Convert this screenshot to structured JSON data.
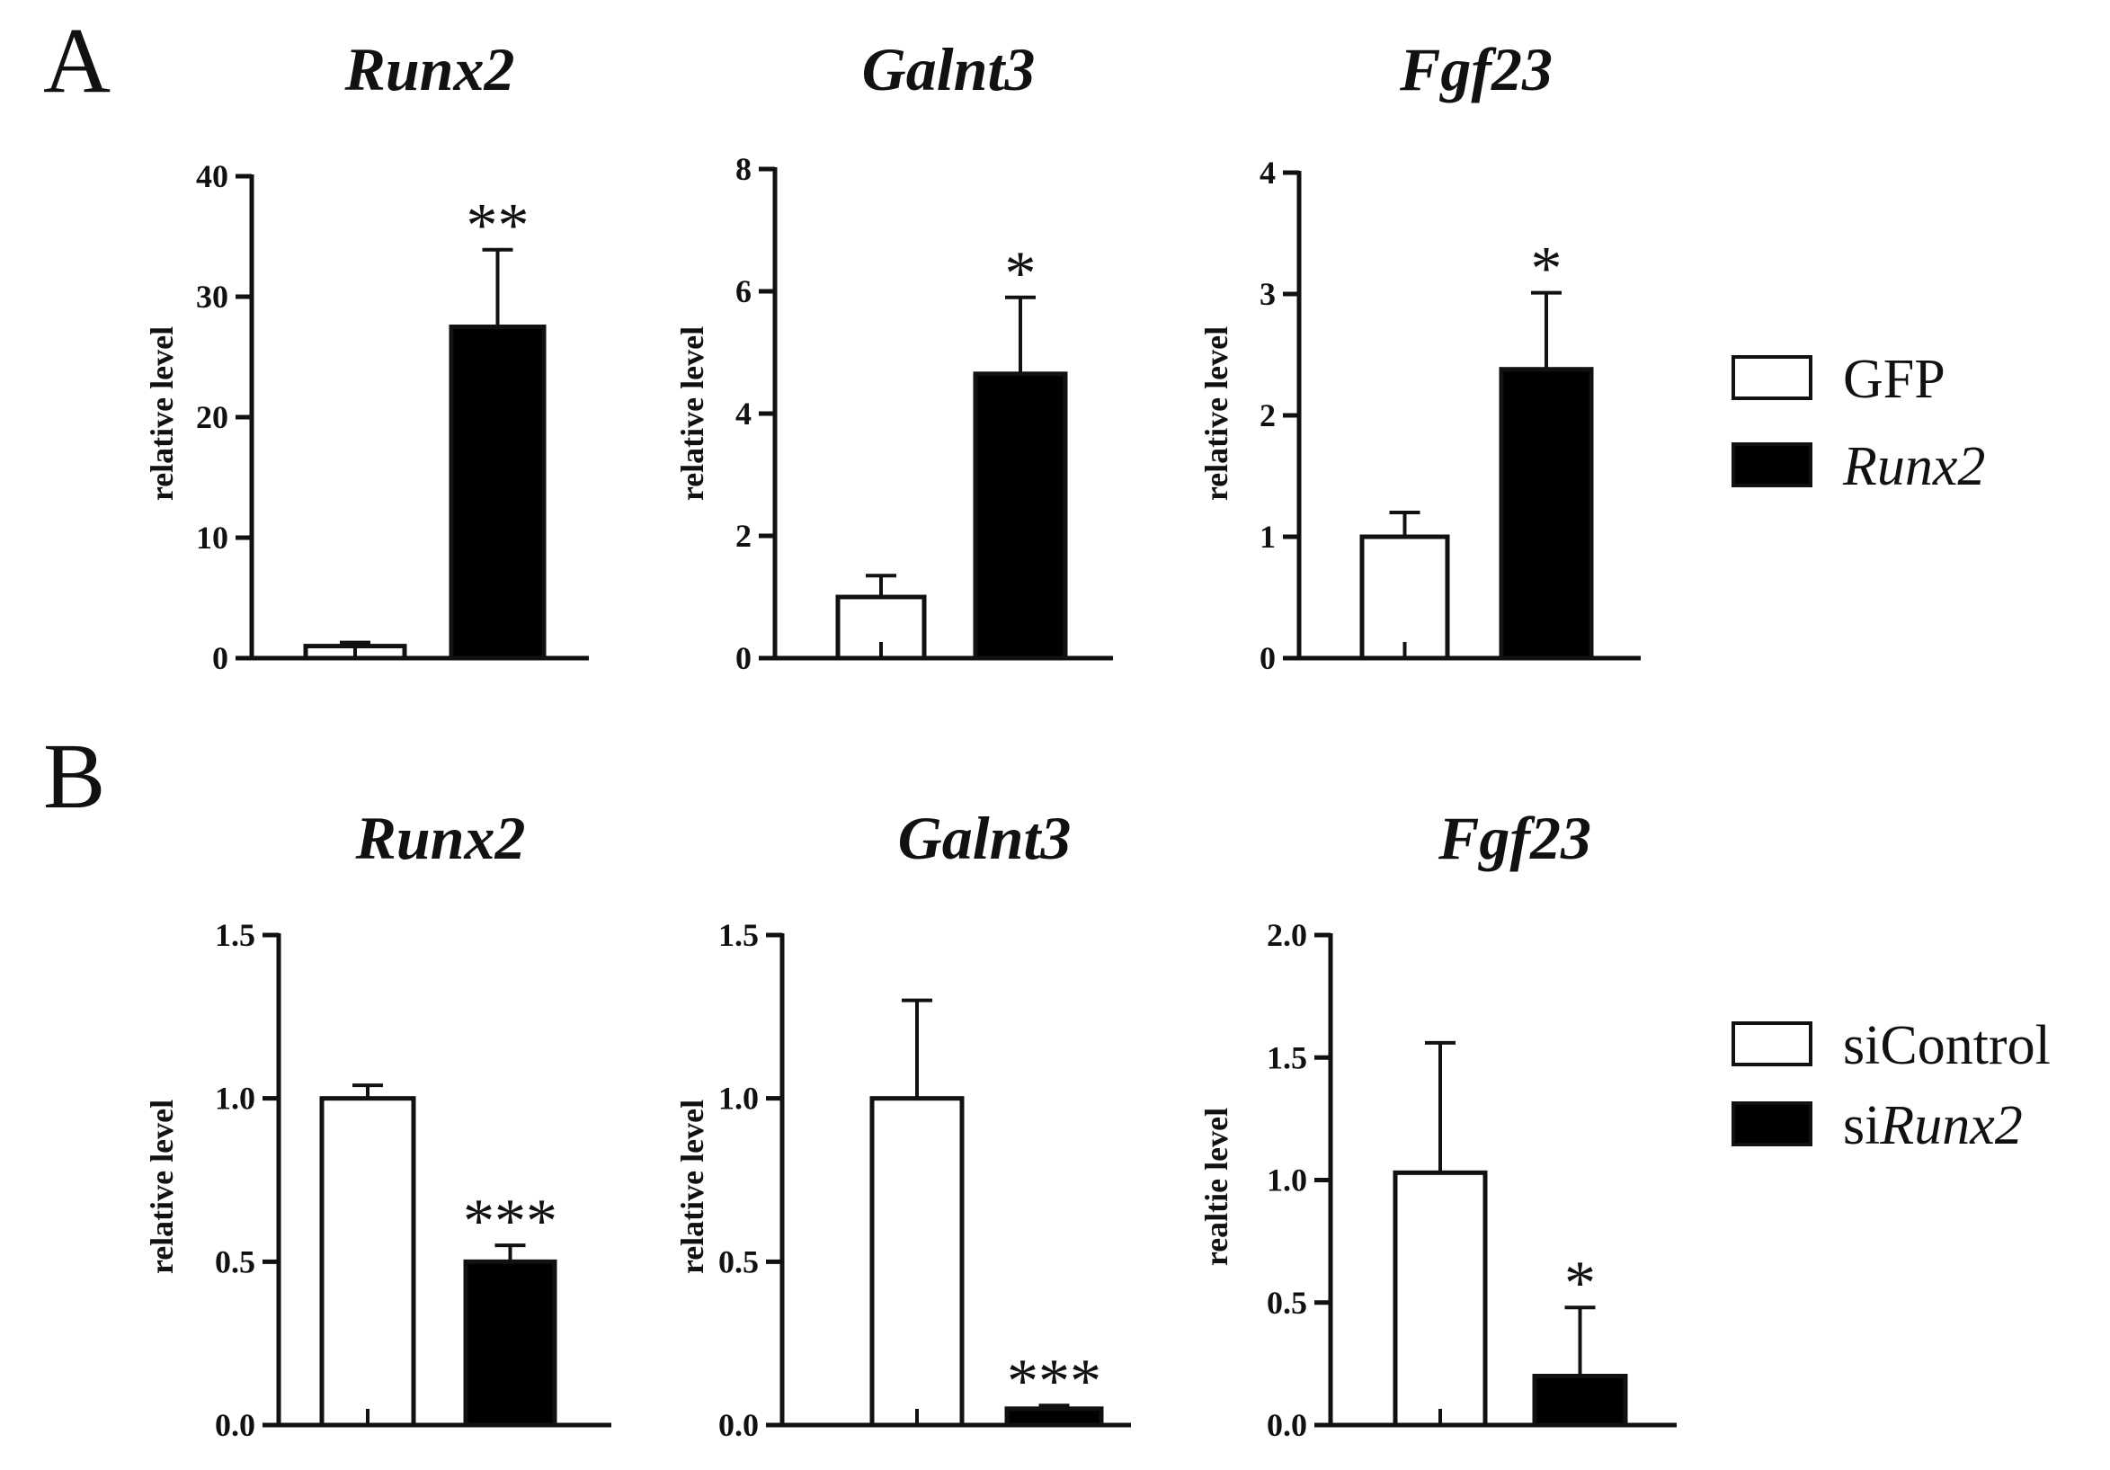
{
  "panels": [
    {
      "letter": "A"
    },
    {
      "letter": "B"
    }
  ],
  "legends": [
    {
      "entries": [
        {
          "prefix": "GFP",
          "italic": "",
          "fill": "#ffffff"
        },
        {
          "prefix": "",
          "italic": "Runx2",
          "fill": "#000000"
        }
      ]
    },
    {
      "entries": [
        {
          "prefix": "siControl",
          "italic": "",
          "fill": "#ffffff"
        },
        {
          "prefix": "si",
          "italic": "Runx2",
          "fill": "#000000"
        }
      ]
    }
  ],
  "chart_data": [
    {
      "type": "bar",
      "panel": "A",
      "title": "Runx2",
      "ylabel": "relative level",
      "ylim": [
        0,
        40
      ],
      "yticks": [
        "0",
        "10",
        "20",
        "30",
        "40"
      ],
      "bars": [
        {
          "group": "GFP",
          "value": 1.0,
          "error": 0.3,
          "fill": "#ffffff",
          "sig": ""
        },
        {
          "group": "Runx2",
          "value": 27.5,
          "error": 6.4,
          "fill": "#000000",
          "sig": "**"
        }
      ]
    },
    {
      "type": "bar",
      "panel": "A",
      "title": "Galnt3",
      "ylabel": "relative level",
      "ylim": [
        0,
        8
      ],
      "yticks": [
        "0",
        "2",
        "4",
        "6",
        "8"
      ],
      "bars": [
        {
          "group": "GFP",
          "value": 1.0,
          "error": 0.35,
          "fill": "#ffffff",
          "sig": ""
        },
        {
          "group": "Runx2",
          "value": 4.65,
          "error": 1.25,
          "fill": "#000000",
          "sig": "*"
        }
      ]
    },
    {
      "type": "bar",
      "panel": "A",
      "title": "Fgf23",
      "ylabel": "relative level",
      "ylim": [
        0,
        4
      ],
      "yticks": [
        "0",
        "1",
        "2",
        "3",
        "4"
      ],
      "bars": [
        {
          "group": "GFP",
          "value": 1.0,
          "error": 0.2,
          "fill": "#ffffff",
          "sig": ""
        },
        {
          "group": "Runx2",
          "value": 2.38,
          "error": 0.63,
          "fill": "#000000",
          "sig": "*"
        }
      ]
    },
    {
      "type": "bar",
      "panel": "B",
      "title": "Runx2",
      "ylabel": "relative level",
      "ylim": [
        0,
        1.5
      ],
      "yticks": [
        "0.0",
        "0.5",
        "1.0",
        "1.5"
      ],
      "bars": [
        {
          "group": "siControl",
          "value": 1.0,
          "error": 0.04,
          "fill": "#ffffff",
          "sig": ""
        },
        {
          "group": "siRunx2",
          "value": 0.5,
          "error": 0.05,
          "fill": "#000000",
          "sig": "***"
        }
      ]
    },
    {
      "type": "bar",
      "panel": "B",
      "title": "Galnt3",
      "ylabel": "relative level",
      "ylim": [
        0,
        1.5
      ],
      "yticks": [
        "0.0",
        "0.5",
        "1.0",
        "1.5"
      ],
      "bars": [
        {
          "group": "siControl",
          "value": 1.0,
          "error": 0.3,
          "fill": "#ffffff",
          "sig": ""
        },
        {
          "group": "siRunx2",
          "value": 0.05,
          "error": 0.01,
          "fill": "#000000",
          "sig": "***"
        }
      ]
    },
    {
      "type": "bar",
      "panel": "B",
      "title": "Fgf23",
      "ylabel": "realtie level",
      "ylim": [
        0,
        2.0
      ],
      "yticks": [
        "0.0",
        "0.5",
        "1.0",
        "1.5",
        "2.0"
      ],
      "bars": [
        {
          "group": "siControl",
          "value": 1.03,
          "error": 0.53,
          "fill": "#ffffff",
          "sig": ""
        },
        {
          "group": "siRunx2",
          "value": 0.2,
          "error": 0.28,
          "fill": "#000000",
          "sig": "*"
        }
      ]
    }
  ]
}
